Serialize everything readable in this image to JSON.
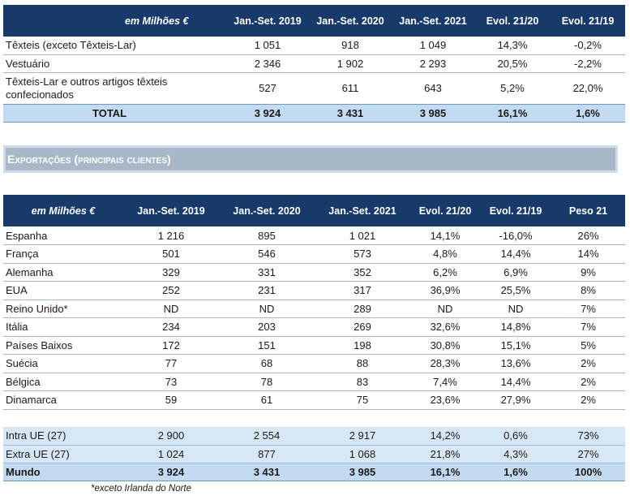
{
  "table1": {
    "headers": [
      "em Milhões €",
      "Jan.-Set. 2019",
      "Jan.-Set. 2020",
      "Jan.-Set. 2021",
      "Evol. 21/20",
      "Evol. 21/19"
    ],
    "rows": [
      [
        "Têxteis (exceto Têxteis-Lar)",
        "1 051",
        "918",
        "1 049",
        "14,3%",
        "-0,2%"
      ],
      [
        "Vestuário",
        "2 346",
        "1 902",
        "2 293",
        "20,5%",
        "-2,2%"
      ],
      [
        "Têxteis-Lar e outros artigos têxteis confecionados",
        "527",
        "611",
        "643",
        "5,2%",
        "22,0%"
      ]
    ],
    "total": [
      "TOTAL",
      "3 924",
      "3 431",
      "3 985",
      "16,1%",
      "1,6%"
    ]
  },
  "section_title": "Exportações (principais clientes)",
  "table2": {
    "headers": [
      "em Milhões €",
      "Jan.-Set. 2019",
      "Jan.-Set. 2020",
      "Jan.-Set. 2021",
      "Evol. 21/20",
      "Evol. 21/19",
      "Peso 21"
    ],
    "rows": [
      [
        "Espanha",
        "1 216",
        "895",
        "1 021",
        "14,1%",
        "-16,0%",
        "26%"
      ],
      [
        "França",
        "501",
        "546",
        "573",
        "4,8%",
        "14,4%",
        "14%"
      ],
      [
        "Alemanha",
        "329",
        "331",
        "352",
        "6,2%",
        "6,9%",
        "9%"
      ],
      [
        "EUA",
        "252",
        "231",
        "317",
        "36,9%",
        "25,5%",
        "8%"
      ],
      [
        "Reino Unido*",
        "ND",
        "ND",
        "289",
        "ND",
        "ND",
        "7%"
      ],
      [
        "Itália",
        "234",
        "203",
        "269",
        "32,6%",
        "14,8%",
        "7%"
      ],
      [
        "Países Baixos",
        "172",
        "151",
        "198",
        "30,8%",
        "15,1%",
        "5%"
      ],
      [
        "Suécia",
        "77",
        "68",
        "88",
        "28,3%",
        "13,6%",
        "2%"
      ],
      [
        "Bélgica",
        "73",
        "78",
        "83",
        "7,4%",
        "14,4%",
        "2%"
      ],
      [
        "Dinamarca",
        "59",
        "61",
        "75",
        "23,6%",
        "27,9%",
        "2%"
      ]
    ],
    "summary": [
      [
        "Intra UE (27)",
        "2 900",
        "2 554",
        "2 917",
        "14,2%",
        "0,6%",
        "73%"
      ],
      [
        "Extra UE (27)",
        "1 024",
        "877",
        "1 068",
        "21,8%",
        "4,3%",
        "27%"
      ]
    ],
    "world": [
      "Mundo",
      "3 924",
      "3 431",
      "3 985",
      "16,1%",
      "1,6%",
      "100%"
    ]
  },
  "footnote": "*exceto Irlanda do Norte"
}
